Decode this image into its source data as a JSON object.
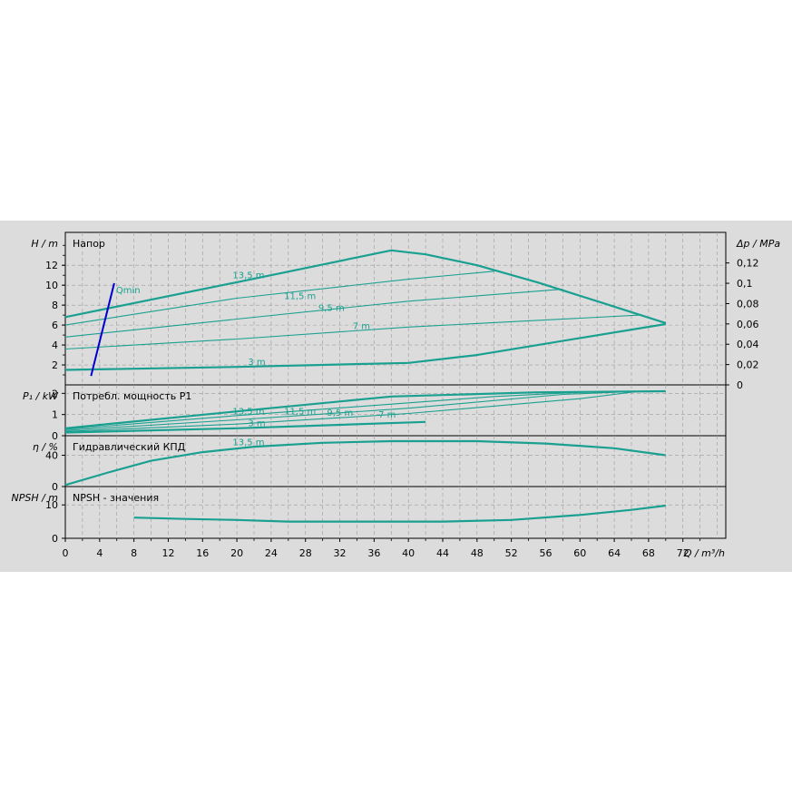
{
  "colors": {
    "background": "#dcdcdc",
    "curve": "#1aa090",
    "qmin": "#0000cc",
    "grid": "#9a9a9a",
    "axis": "#000000"
  },
  "chart_data": [
    {
      "type": "line",
      "panel": "head",
      "title": "Напор",
      "ylabel": "H / m",
      "y2label": "Δp / MPa",
      "xlim": [
        0,
        77
      ],
      "ylim": [
        0,
        15.3
      ],
      "yticks": [
        "2",
        "4",
        "6",
        "8",
        "10",
        "12"
      ],
      "y2ticks": [
        "0",
        "0,02",
        "0,04",
        "0,06",
        "0,08",
        "0,1",
        "0,12"
      ],
      "y2_values": [
        0,
        0.02,
        0.04,
        0.06,
        0.08,
        0.1,
        0.12
      ],
      "grid": true,
      "qmin_label": "Qmin",
      "qmin_line": [
        [
          3,
          0.9
        ],
        [
          5.7,
          10.2
        ]
      ],
      "series": [
        {
          "name": "13,5 m",
          "label_at": [
            19.5,
            10.7
          ],
          "points": [
            [
              0,
              6.8
            ],
            [
              20,
              10.3
            ],
            [
              38,
              13.5
            ],
            [
              42,
              13.1
            ],
            [
              48,
              12.0
            ],
            [
              55,
              10.3
            ],
            [
              62,
              8.4
            ],
            [
              70,
              6.2
            ]
          ]
        },
        {
          "name": "11,5 m",
          "label_at": [
            25.5,
            8.6
          ],
          "points": [
            [
              0,
              6.0
            ],
            [
              20,
              8.7
            ],
            [
              40,
              10.6
            ],
            [
              50,
              11.4
            ]
          ]
        },
        {
          "name": "9,5 m",
          "label_at": [
            29.5,
            7.4
          ],
          "points": [
            [
              0,
              4.8
            ],
            [
              20,
              6.6
            ],
            [
              40,
              8.4
            ],
            [
              58,
              9.6
            ]
          ]
        },
        {
          "name": "7 m",
          "label_at": [
            33.5,
            5.6
          ],
          "points": [
            [
              0,
              3.6
            ],
            [
              20,
              4.6
            ],
            [
              40,
              5.8
            ],
            [
              67,
              7.0
            ]
          ]
        },
        {
          "name": "3 m",
          "label_at": [
            21.3,
            2.0
          ],
          "points": [
            [
              0,
              1.5
            ],
            [
              20,
              1.8
            ],
            [
              40,
              2.2
            ],
            [
              48,
              3.0
            ],
            [
              60,
              4.7
            ],
            [
              70,
              6.1
            ]
          ]
        }
      ]
    },
    {
      "type": "line",
      "panel": "power",
      "title": "Потребл. мощность P1",
      "ylabel": "P₁ / kW",
      "xlim": [
        0,
        77
      ],
      "ylim": [
        0,
        2.4
      ],
      "yticks": [
        "0",
        "1",
        "2"
      ],
      "grid": true,
      "series": [
        {
          "name": "13,5 m",
          "label_at": [
            19.5,
            1.0
          ],
          "points": [
            [
              0,
              0.35
            ],
            [
              20,
              1.15
            ],
            [
              38,
              1.85
            ],
            [
              55,
              2.05
            ],
            [
              70,
              2.1
            ]
          ]
        },
        {
          "name": "11,5 m",
          "label_at": [
            25.5,
            1.0
          ],
          "points": [
            [
              0,
              0.3
            ],
            [
              20,
              0.95
            ],
            [
              40,
              1.55
            ],
            [
              50,
              1.85
            ],
            [
              60,
              2.05
            ],
            [
              67,
              2.1
            ]
          ]
        },
        {
          "name": "9,5 m",
          "label_at": [
            30.5,
            0.95
          ],
          "points": [
            [
              0,
              0.25
            ],
            [
              20,
              0.75
            ],
            [
              40,
              1.3
            ],
            [
              58,
              1.95
            ],
            [
              67,
              2.1
            ]
          ]
        },
        {
          "name": "7 m",
          "label_at": [
            36.5,
            0.85
          ],
          "points": [
            [
              0,
              0.2
            ],
            [
              20,
              0.55
            ],
            [
              40,
              1.05
            ],
            [
              60,
              1.75
            ],
            [
              67,
              2.1
            ]
          ]
        },
        {
          "name": "3 m",
          "label_at": [
            21.3,
            0.45
          ],
          "points": [
            [
              0,
              0.15
            ],
            [
              20,
              0.35
            ],
            [
              42,
              0.65
            ]
          ]
        }
      ]
    },
    {
      "type": "line",
      "panel": "efficiency",
      "title": "Гидравлический КПД",
      "ylabel": "η / %",
      "xlim": [
        0,
        77
      ],
      "ylim": [
        0,
        65
      ],
      "yticks": [
        "0",
        "40"
      ],
      "grid": true,
      "series": [
        {
          "name": "13,5 m",
          "label_at": [
            19.5,
            53
          ],
          "points": [
            [
              0,
              2
            ],
            [
              5,
              18
            ],
            [
              10,
              33
            ],
            [
              16,
              44
            ],
            [
              22,
              51
            ],
            [
              30,
              56
            ],
            [
              38,
              58
            ],
            [
              48,
              58
            ],
            [
              56,
              55
            ],
            [
              64,
              49
            ],
            [
              70,
              40
            ]
          ]
        }
      ]
    },
    {
      "type": "line",
      "panel": "npsh",
      "title": "NPSH - значения",
      "ylabel": "NPSH / m",
      "xlabel": "Q / m³/h",
      "xlim": [
        0,
        77
      ],
      "ylim": [
        0,
        15.5
      ],
      "yticks": [
        "0",
        "10"
      ],
      "xticks": [
        "0",
        "4",
        "8",
        "12",
        "16",
        "20",
        "24",
        "28",
        "32",
        "36",
        "40",
        "44",
        "48",
        "52",
        "56",
        "60",
        "64",
        "68",
        "72"
      ],
      "grid": true,
      "series": [
        {
          "points": [
            [
              8,
              6.2
            ],
            [
              14,
              5.8
            ],
            [
              20,
              5.5
            ],
            [
              26,
              5.0
            ],
            [
              34,
              5.0
            ],
            [
              44,
              5.0
            ],
            [
              52,
              5.5
            ],
            [
              60,
              7.0
            ],
            [
              66,
              8.5
            ],
            [
              70,
              9.8
            ]
          ]
        }
      ]
    }
  ]
}
